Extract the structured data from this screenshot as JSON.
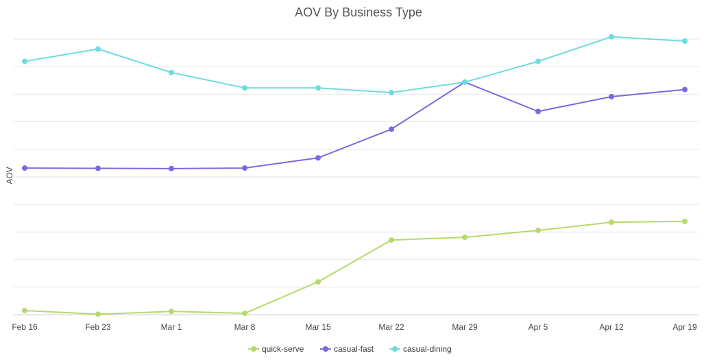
{
  "chart_data": {
    "type": "line",
    "title": "AOV By Business Type",
    "xlabel": "",
    "ylabel": "AOV",
    "categories": [
      "Feb 16",
      "Feb 23",
      "Mar 1",
      "Mar 8",
      "Mar 15",
      "Mar 22",
      "Mar 29",
      "Apr 5",
      "Apr 12",
      "Apr 19"
    ],
    "ylim": [
      0,
      100
    ],
    "grid": true,
    "legend_position": "bottom-center",
    "series": [
      {
        "name": "quick-serve",
        "color": "#b5d96a",
        "values": [
          1.5,
          0.2,
          1.2,
          0.5,
          12.0,
          27.3,
          28.3,
          30.8,
          33.8,
          34.1
        ]
      },
      {
        "name": "casual-fast",
        "color": "#7b68e0",
        "values": [
          53.6,
          53.5,
          53.4,
          53.6,
          57.3,
          67.8,
          85.0,
          74.3,
          79.7,
          82.3
        ]
      },
      {
        "name": "casual-dining",
        "color": "#6fdcdc",
        "values": [
          92.6,
          97.1,
          88.5,
          82.9,
          82.9,
          81.2,
          85.0,
          92.6,
          101.6,
          100.0
        ]
      }
    ]
  }
}
